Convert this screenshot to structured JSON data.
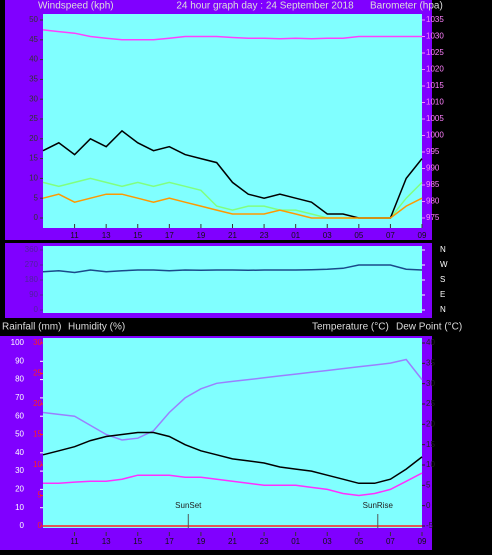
{
  "chart_data": [
    {
      "type": "line",
      "title": "24 hour graph day : 24 September 2018",
      "y_label": "Windspeed (kph)",
      "y2_label": "Barometer (hpa)",
      "x": [
        0,
        1,
        2,
        3,
        4,
        5,
        6,
        7,
        8,
        9,
        10,
        11,
        12,
        13,
        14,
        15,
        16,
        17,
        18,
        19,
        20,
        21,
        22,
        23,
        24
      ],
      "xlim": [
        0,
        24
      ],
      "xticks": [
        {
          "value": 2,
          "label": "11"
        },
        {
          "value": 4,
          "label": "13"
        },
        {
          "value": 6,
          "label": "15"
        },
        {
          "value": 8,
          "label": "17"
        },
        {
          "value": 10,
          "label": "19"
        },
        {
          "value": 12,
          "label": "21"
        },
        {
          "value": 14,
          "label": "23"
        },
        {
          "value": 16,
          "label": "01"
        },
        {
          "value": 18,
          "label": "03"
        },
        {
          "value": 20,
          "label": "05"
        },
        {
          "value": 22,
          "label": "07"
        },
        {
          "value": 24,
          "label": "09"
        }
      ],
      "ylim": [
        0,
        50
      ],
      "yticks": [
        0,
        5,
        10,
        15,
        20,
        25,
        30,
        35,
        40,
        45,
        50
      ],
      "y2lim": [
        975,
        1035
      ],
      "y2ticks": [
        975,
        980,
        985,
        990,
        995,
        1000,
        1005,
        1010,
        1015,
        1020,
        1025,
        1030,
        1035
      ],
      "series": [
        {
          "color": "#80ff80",
          "values": [
            9,
            8,
            9,
            10,
            9,
            8,
            9,
            8,
            9,
            8,
            7,
            3,
            2,
            3,
            3,
            2,
            2,
            1,
            0,
            0,
            0,
            0,
            0,
            5,
            9
          ]
        },
        {
          "color": "#000000",
          "values": [
            17,
            19,
            16,
            20,
            18,
            22,
            19,
            17,
            18,
            16,
            15,
            14,
            9,
            6,
            5,
            6,
            5,
            4,
            1,
            1,
            0,
            0,
            0,
            10,
            15
          ]
        },
        {
          "color": "#ff9900",
          "values": [
            5,
            6,
            4,
            5,
            6,
            6,
            5,
            4,
            5,
            4,
            3,
            2,
            1,
            1,
            1,
            2,
            1,
            0,
            0,
            0,
            0,
            0,
            0,
            3,
            5
          ]
        },
        {
          "color": "#ff40ff",
          "axis": "y2",
          "values": [
            1032,
            1031.5,
            1031,
            1030,
            1029.5,
            1029,
            1029,
            1029,
            1029.5,
            1030,
            1030,
            1030,
            1029.7,
            1029.5,
            1029.5,
            1029.3,
            1029.5,
            1029.3,
            1029.5,
            1029.5,
            1030,
            1030,
            1030,
            1030,
            1030
          ]
        }
      ]
    },
    {
      "type": "line",
      "x": [
        0,
        1,
        2,
        3,
        4,
        5,
        6,
        7,
        8,
        9,
        10,
        11,
        12,
        13,
        14,
        15,
        16,
        17,
        18,
        19,
        20,
        21,
        22,
        23,
        24
      ],
      "xlim": [
        0,
        24
      ],
      "ylim": [
        0,
        360
      ],
      "yticks": [
        0,
        90,
        180,
        270,
        360
      ],
      "y2lim": [
        0,
        360
      ],
      "y2ticks": [
        {
          "value": 360,
          "label": "N"
        },
        {
          "value": 270,
          "label": "W"
        },
        {
          "value": 180,
          "label": "S"
        },
        {
          "value": 90,
          "label": "E"
        },
        {
          "value": 0,
          "label": "N"
        }
      ],
      "series": [
        {
          "color": "#1a4a8a",
          "values": [
            230,
            235,
            225,
            240,
            230,
            235,
            240,
            240,
            235,
            240,
            238,
            240,
            240,
            238,
            240,
            240,
            240,
            242,
            245,
            250,
            270,
            270,
            270,
            245,
            240
          ]
        }
      ]
    },
    {
      "type": "line",
      "y3_label": "Rainfall (mm)",
      "y_label": "Humidity (%)",
      "y2_label": "Temperature (°C)",
      "y2_label_2": "Dew Point (°C)",
      "x": [
        0,
        1,
        2,
        3,
        4,
        5,
        6,
        7,
        8,
        9,
        10,
        11,
        12,
        13,
        14,
        15,
        16,
        17,
        18,
        19,
        20,
        21,
        22,
        23,
        24
      ],
      "xlim": [
        0,
        24
      ],
      "xticks": [
        {
          "value": 2,
          "label": "11"
        },
        {
          "value": 4,
          "label": "13"
        },
        {
          "value": 6,
          "label": "15"
        },
        {
          "value": 8,
          "label": "17"
        },
        {
          "value": 10,
          "label": "19"
        },
        {
          "value": 12,
          "label": "21"
        },
        {
          "value": 14,
          "label": "23"
        },
        {
          "value": 16,
          "label": "01"
        },
        {
          "value": 18,
          "label": "03"
        },
        {
          "value": 20,
          "label": "05"
        },
        {
          "value": 22,
          "label": "07"
        },
        {
          "value": 24,
          "label": "09"
        }
      ],
      "ylim": [
        0,
        100
      ],
      "yticks": [
        0,
        10,
        20,
        30,
        40,
        50,
        60,
        70,
        80,
        90,
        100
      ],
      "y3lim": [
        0,
        30
      ],
      "y3ticks": [
        0,
        5,
        10,
        15,
        20,
        25,
        30
      ],
      "y2lim": [
        -5,
        40
      ],
      "y2ticks": [
        -5,
        0,
        5,
        10,
        15,
        20,
        25,
        30,
        35,
        40
      ],
      "annotations": [
        {
          "text": "SunSet",
          "x": 9.2
        },
        {
          "text": "SunRise",
          "x": 21.2
        }
      ],
      "series": [
        {
          "color": "#ff2020",
          "axis": "y3",
          "values": [
            0,
            0,
            0,
            0,
            0,
            0,
            0,
            0,
            0,
            0,
            0,
            0,
            0,
            0,
            0,
            0,
            0,
            0,
            0,
            0,
            0,
            0,
            0,
            0,
            0
          ]
        },
        {
          "color": "#9a80ff",
          "values": [
            62,
            61,
            60,
            55,
            50,
            47,
            48,
            52,
            62,
            70,
            75,
            78,
            79,
            80,
            81,
            82,
            83,
            84,
            85,
            86,
            87,
            88,
            89,
            91,
            80
          ]
        },
        {
          "color": "#000000",
          "axis": "y2",
          "values": [
            12.5,
            13.5,
            14.5,
            16,
            17,
            17.5,
            18,
            18,
            17,
            15,
            13.5,
            12.5,
            11.5,
            11,
            10.5,
            9.5,
            9,
            8.5,
            7.5,
            6.5,
            5.5,
            5.5,
            6.5,
            9,
            12
          ]
        },
        {
          "color": "#ff30ff",
          "axis": "y2",
          "values": [
            5.5,
            5.5,
            5.8,
            6,
            6,
            6.5,
            7.5,
            7.5,
            7.5,
            7,
            7,
            6.5,
            6,
            5.5,
            5,
            5,
            5,
            4.5,
            4,
            3,
            2.5,
            3,
            4,
            6,
            8
          ]
        }
      ]
    }
  ]
}
